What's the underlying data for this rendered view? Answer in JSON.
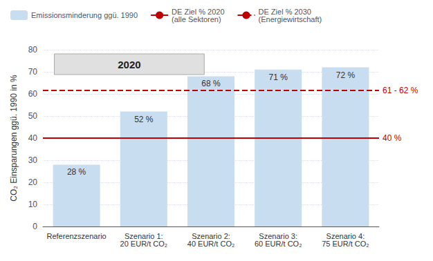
{
  "chart_data": {
    "type": "bar",
    "categories": [
      "Referenzszenario",
      "Szenario 1:\n20 EUR/t CO₂",
      "Szenario 2:\n40 EUR/t CO₂",
      "Szenario 3:\n60 EUR/t CO₂",
      "Szenario 4:\n75 EUR/t CO₂"
    ],
    "series": [
      {
        "name": "Emissionsminderung ggü. 1990",
        "type": "bar",
        "color": "#c9ddf0",
        "values": [
          28,
          52,
          68,
          71,
          72
        ],
        "value_labels": [
          "28 %",
          "52 %",
          "68 %",
          "71 %",
          "72 %"
        ]
      }
    ],
    "lines": [
      {
        "name": "DE Ziel % 2020\n(alle Sektoren)",
        "y": 40,
        "label": "40 %",
        "color": "#c00000",
        "line_style": "solid"
      },
      {
        "name": "DE Ziel % 2030\n(Energiewirtschaft)",
        "y": 61.5,
        "label": "61 - 62 %",
        "color": "#c00000",
        "line_style": "dashed"
      }
    ],
    "annotations": [
      {
        "text": "2020"
      }
    ],
    "ylabel": "CO₂ Einsparungen ggü. 1990 in %",
    "ylim": [
      0,
      80
    ],
    "yticks": [
      0,
      10,
      20,
      30,
      40,
      50,
      60,
      70,
      80
    ],
    "grid": true,
    "data_labels": true,
    "legend": "upper left"
  }
}
